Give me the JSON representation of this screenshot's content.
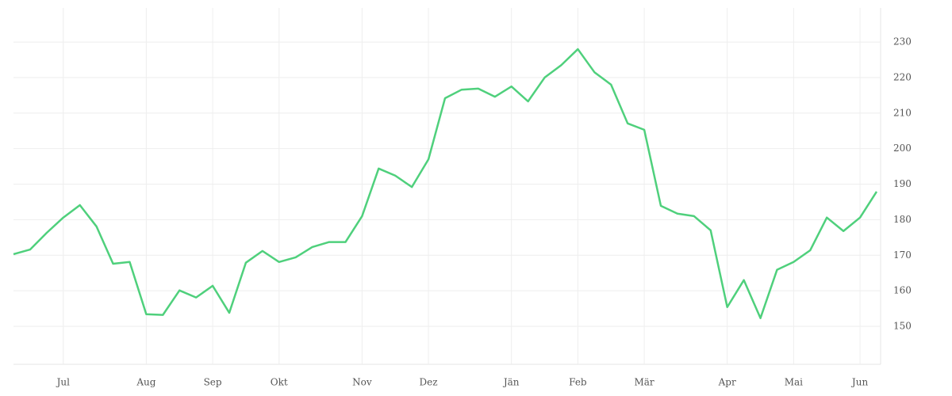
{
  "chart_data": {
    "type": "line",
    "categories": [
      null,
      null,
      null,
      "Jul",
      null,
      null,
      null,
      null,
      "Aug",
      null,
      null,
      null,
      "Sep",
      null,
      null,
      null,
      "Okt",
      null,
      null,
      null,
      null,
      "Nov",
      null,
      null,
      null,
      "Dez",
      null,
      null,
      null,
      null,
      "Jän",
      null,
      null,
      null,
      "Feb",
      null,
      null,
      null,
      "Mär",
      null,
      null,
      null,
      null,
      "Apr",
      null,
      null,
      null,
      "Mai",
      null,
      null,
      null,
      "Jun",
      null
    ],
    "series": [
      {
        "color": "#4fd07c",
        "values": [
          170.3,
          171.6,
          176.3,
          180.6,
          184.1,
          178.1,
          167.6,
          168.1,
          153.4,
          153.2,
          160.1,
          158.1,
          161.4,
          153.8,
          167.9,
          171.2,
          168.1,
          169.4,
          172.3,
          173.7,
          173.7,
          181.0,
          194.4,
          192.4,
          189.2,
          197.0,
          214.2,
          216.6,
          216.9,
          214.6,
          217.5,
          213.3,
          220.0,
          223.5,
          228.0,
          221.5,
          218.0,
          207.1,
          205.3,
          183.9,
          181.7,
          181.0,
          177.0,
          155.4,
          163.0,
          152.3,
          165.9,
          168.1,
          171.4,
          180.6,
          176.8,
          180.6,
          187.9
        ]
      }
    ],
    "ylim": [
      139.3,
      239.6
    ],
    "yticks": [
      150,
      160,
      170,
      180,
      190,
      200,
      210,
      220,
      230
    ],
    "grid": true
  }
}
